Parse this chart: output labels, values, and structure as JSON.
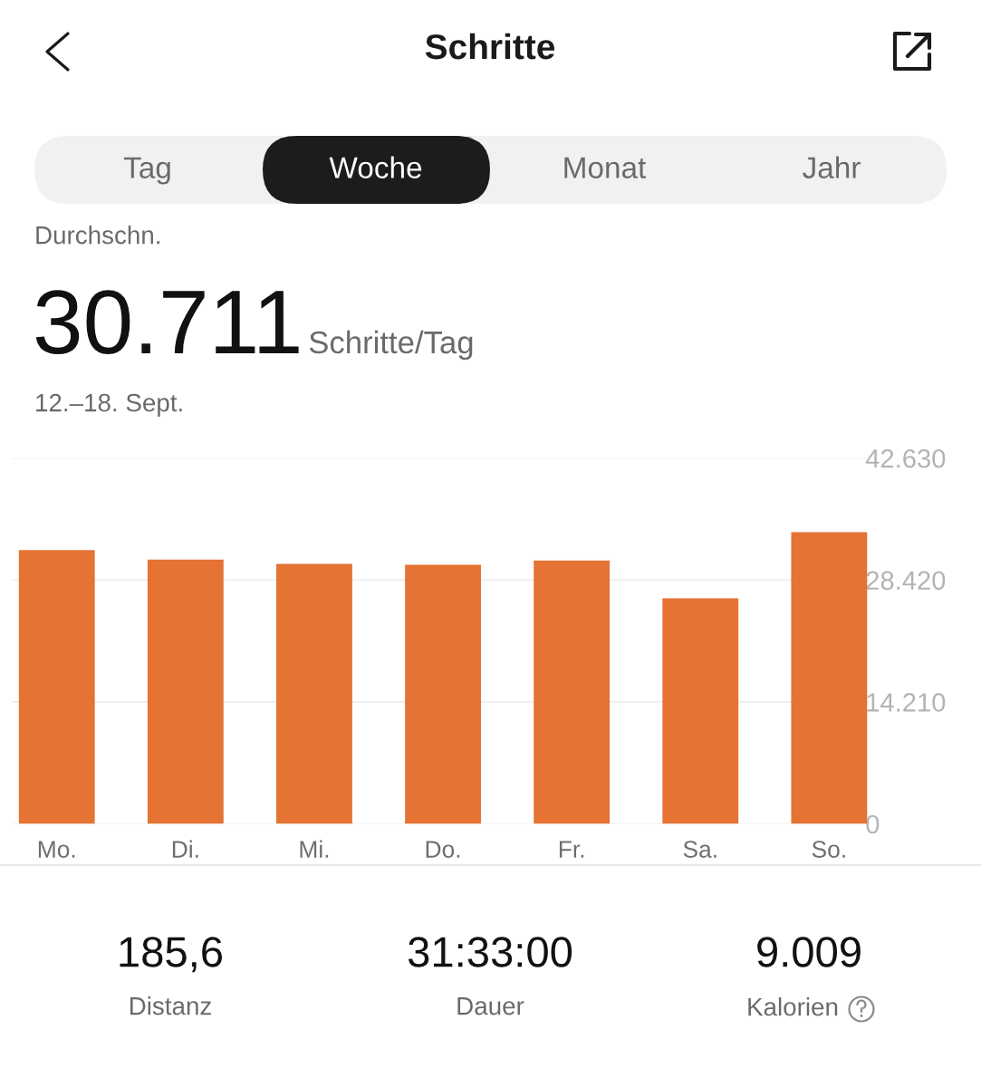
{
  "chart_data": {
    "type": "bar",
    "title": "Schritte",
    "categories": [
      "Mo.",
      "Di.",
      "Mi.",
      "Do.",
      "Fr.",
      "Sa.",
      "So."
    ],
    "values": [
      31900,
      30800,
      30300,
      30200,
      30700,
      26300,
      34000
    ],
    "color": "#e47334",
    "ylim": [
      0,
      42630
    ],
    "yticks": [
      0,
      {
        "value": 14210,
        "label": "14.210"
      },
      {
        "value": 28420,
        "label": "28.420"
      },
      {
        "value": 42630,
        "label": "42.630"
      }
    ],
    "grid": "y",
    "annotations": [
      "Tag",
      "Woche",
      "Monat",
      "Jahr",
      "Durchschn.",
      "30.711",
      "Schritte/Tag",
      "12.–18. Sept.",
      "185,6",
      "Distanz",
      "31:33:00",
      "Dauer",
      "9.009",
      "Kalorien"
    ]
  }
}
